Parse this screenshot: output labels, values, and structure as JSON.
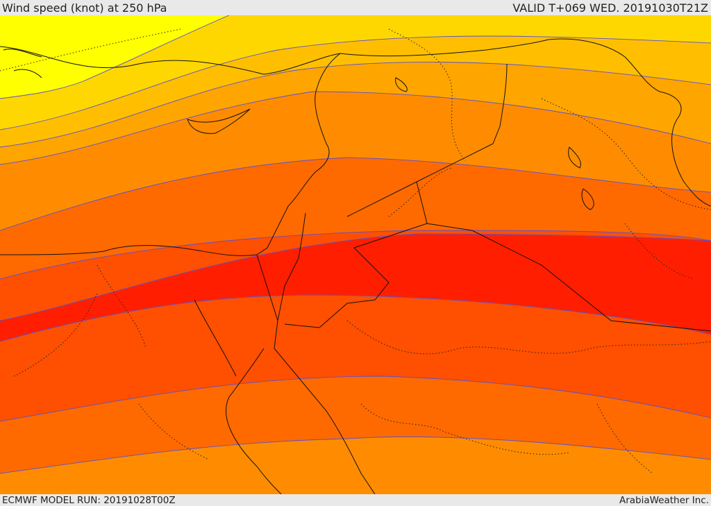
{
  "header": {
    "title": "Wind speed (knot) at 250 hPa",
    "valid": "VALID T+069 WED. 20191030T21Z"
  },
  "footer": {
    "model_run": "ECMWF MODEL RUN: 20191028T00Z",
    "credit": "ArabiaWeather Inc."
  },
  "map": {
    "colors": {
      "yellow": "#ffff00",
      "gold": "#ffd700",
      "amber": "#ffbf00",
      "light_orange": "#ffa500",
      "orange": "#ff8c00",
      "dark_orange": "#ff6a00",
      "orange_red": "#ff4f00",
      "red": "#ff1f00",
      "contour": "#5b4fd1",
      "border": "#111111"
    }
  }
}
